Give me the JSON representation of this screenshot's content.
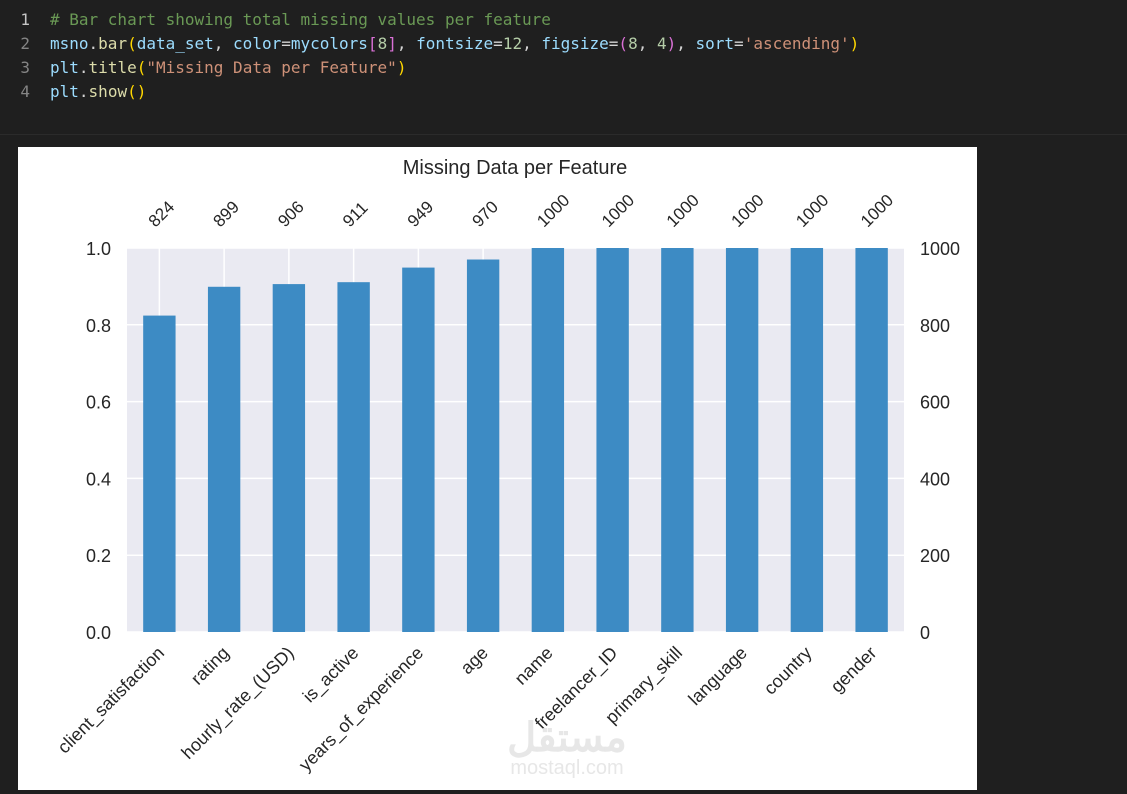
{
  "code": {
    "lines": [
      {
        "num": "1",
        "comment": "# Bar chart showing total missing values per feature"
      },
      {
        "num": "2",
        "obj": "msno",
        "dot": ".",
        "fn": "bar",
        "p1": "(",
        "arg1": "data_set",
        "sep1": ", ",
        "kw1": "color",
        "eq1": "=",
        "val1": "mycolors",
        "br1": "[",
        "num1": "8",
        "br2": "]",
        "sep2": ", ",
        "kw2": "fontsize",
        "eq2": "=",
        "num2": "12",
        "sep3": ", ",
        "kw3": "figsize",
        "eq3": "=",
        "p2": "(",
        "num3": "8",
        "sep4": ", ",
        "num4": "4",
        "p3": ")",
        "sep5": ", ",
        "kw4": "sort",
        "eq4": "=",
        "str1": "'ascending'",
        "p4": ")"
      },
      {
        "num": "3",
        "obj": "plt",
        "dot": ".",
        "fn": "title",
        "p1": "(",
        "str1": "\"Missing Data per Feature\"",
        "p2": ")"
      },
      {
        "num": "4",
        "obj": "plt",
        "dot": ".",
        "fn": "show",
        "p1": "()"
      }
    ]
  },
  "chart_data": {
    "type": "bar",
    "title": "Missing Data per Feature",
    "categories": [
      "client_satisfaction",
      "rating",
      "hourly_rate_(USD)",
      "is_active",
      "years_of_experience",
      "age",
      "name",
      "freelancer_ID",
      "primary_skill",
      "language",
      "country",
      "gender"
    ],
    "values": [
      824,
      899,
      906,
      911,
      949,
      970,
      1000,
      1000,
      1000,
      1000,
      1000,
      1000
    ],
    "left_axis": {
      "ticks": [
        "0.0",
        "0.2",
        "0.4",
        "0.6",
        "0.8",
        "1.0"
      ],
      "range": [
        0,
        1
      ]
    },
    "right_axis": {
      "ticks": [
        "0",
        "200",
        "400",
        "600",
        "800",
        "1000"
      ],
      "range": [
        0,
        1000
      ]
    },
    "bar_color": "#3d8bc4",
    "plot_background": "#eaeaf2",
    "grid": true
  },
  "watermark": {
    "arabic": "مستقل",
    "latin": "mostaql.com"
  }
}
